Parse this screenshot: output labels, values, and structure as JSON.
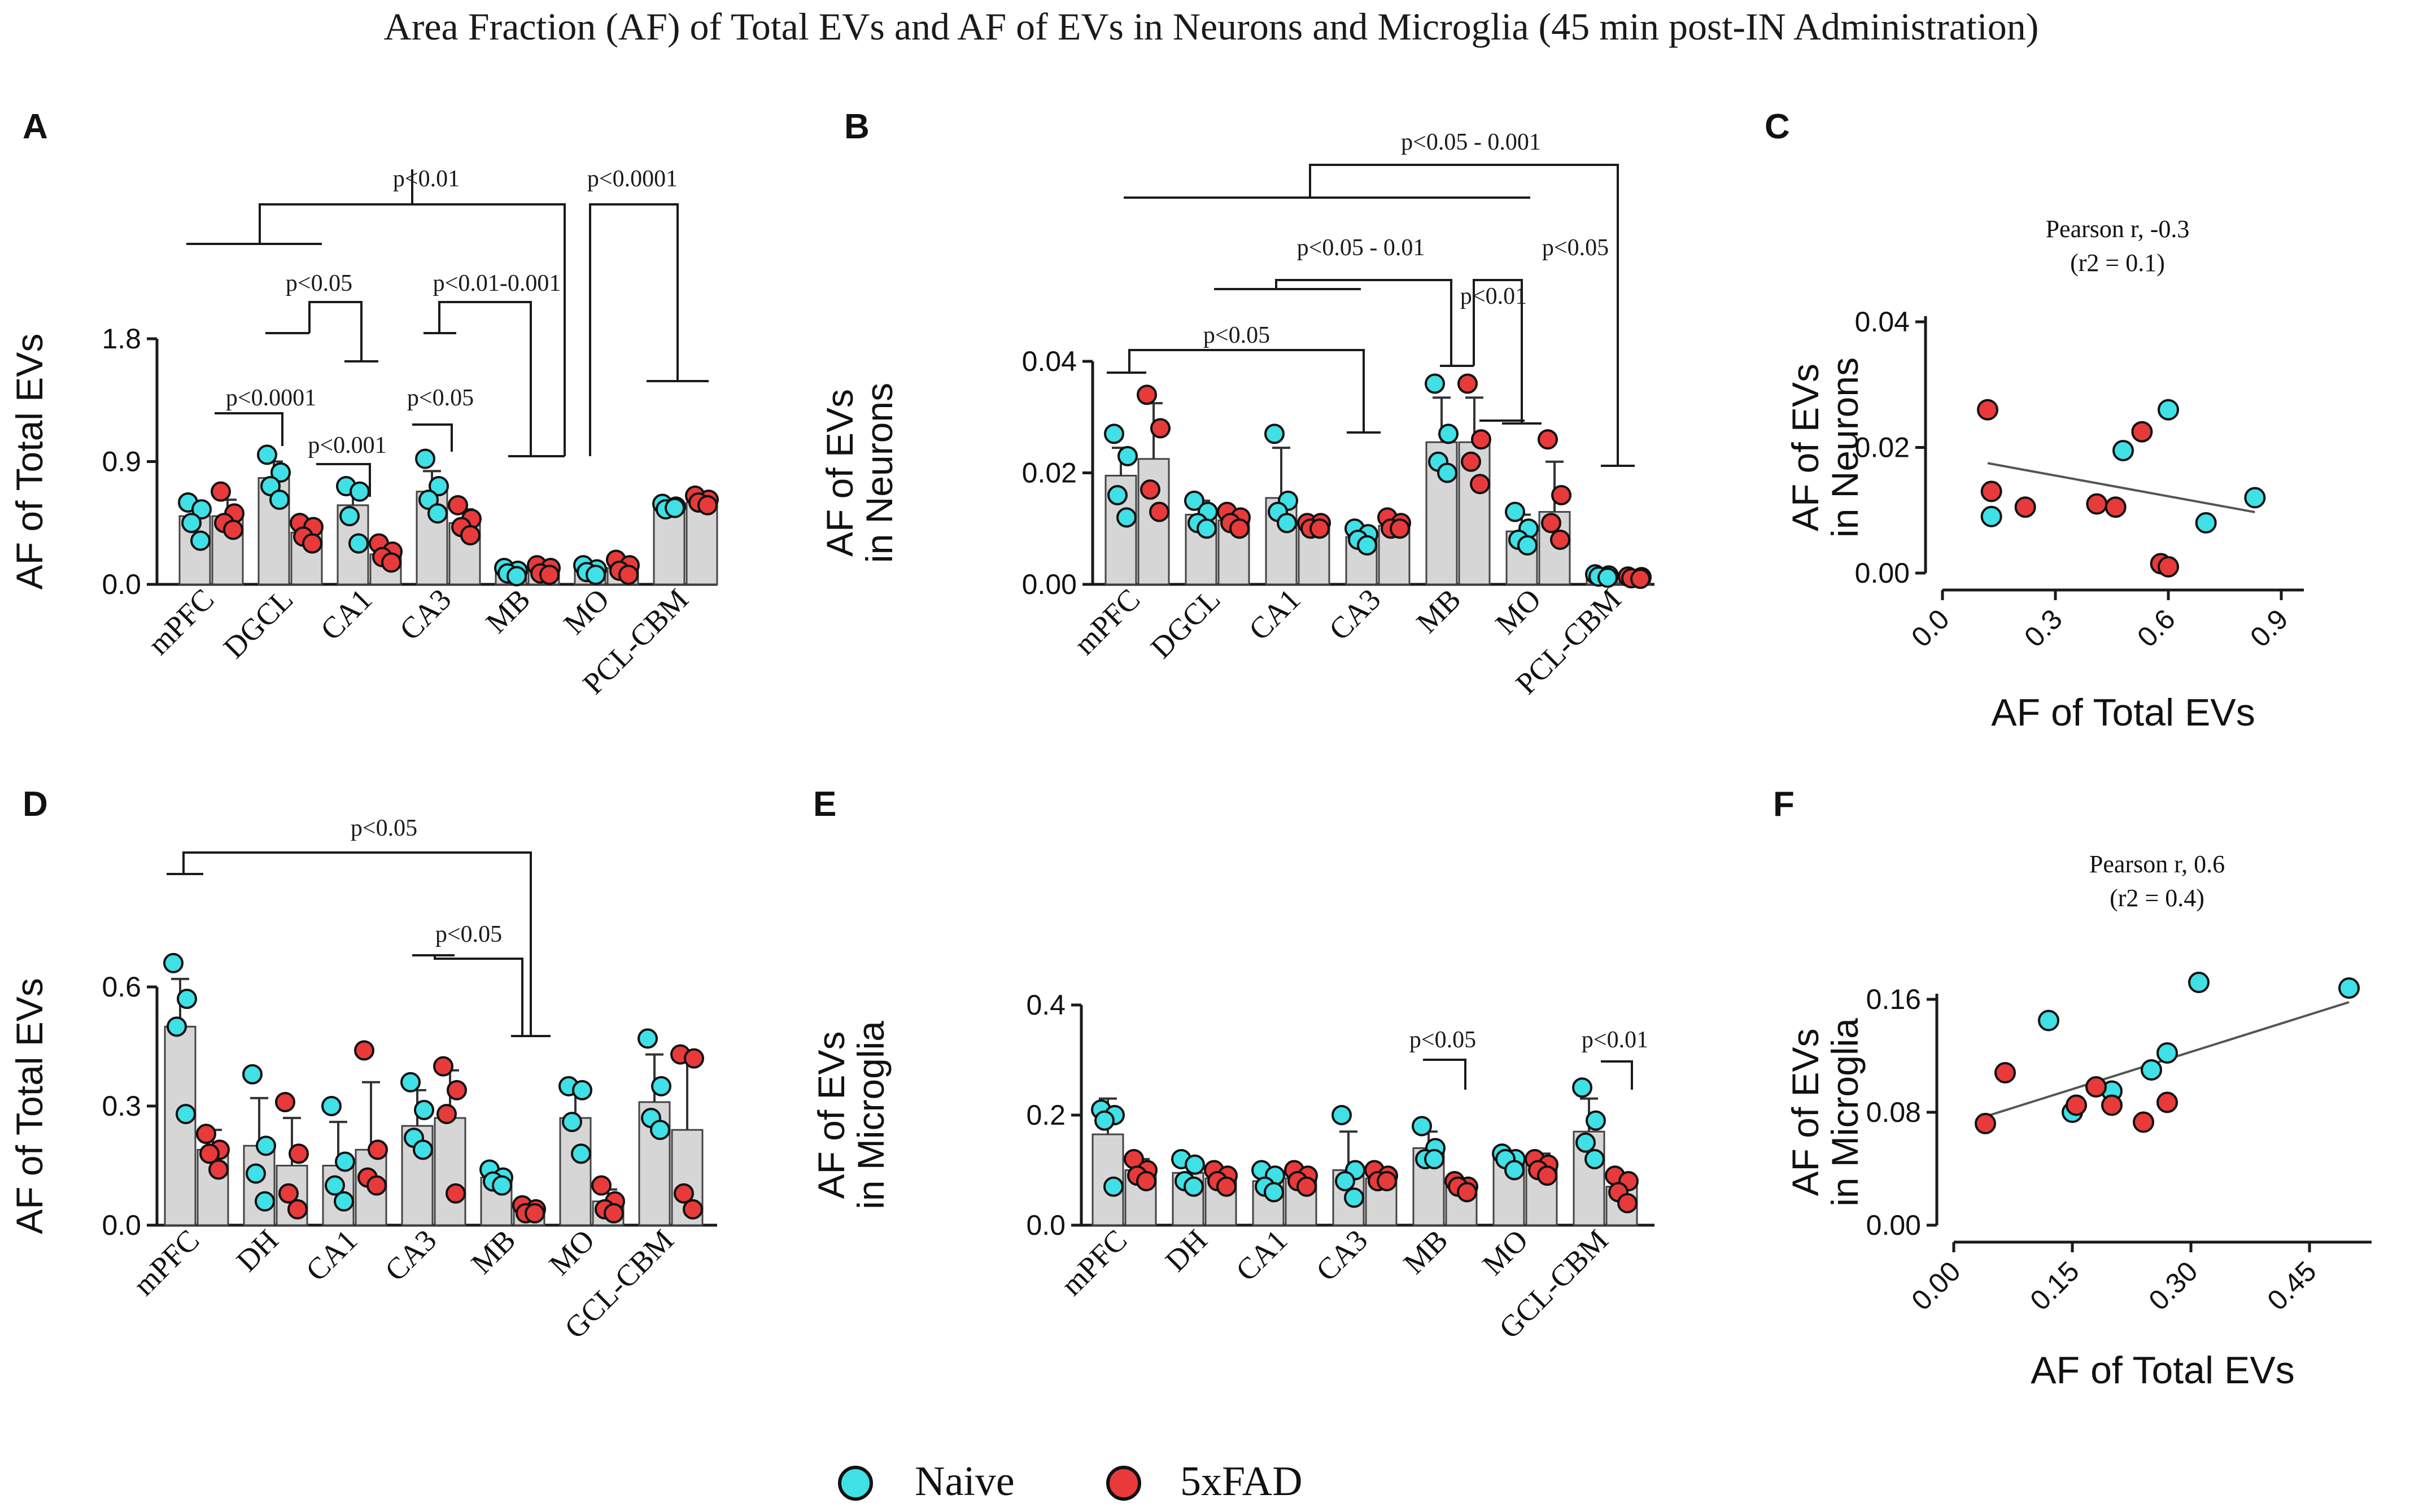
{
  "title": "Area Fraction (AF) of Total EVs and AF of EVs in Neurons and Microglia (45 min post-IN Administration)",
  "legend": {
    "naive": "Naive",
    "fad": "5xFAD"
  },
  "colors": {
    "naive": "#3fe0e6",
    "fad": "#e83a3a",
    "bar": "#d6d6d6",
    "stroke": "#1a1a1a"
  },
  "chart_data": [
    {
      "id": "A",
      "type": "bar",
      "panel": "A",
      "ylabel": "AF of Total EVs",
      "ylim": [
        0,
        1.8
      ],
      "yticks": [
        0.0,
        0.9,
        1.8
      ],
      "ytick_labels": [
        "0.0",
        "0.9",
        "1.8"
      ],
      "categories": [
        "mPFC",
        "DGCL",
        "CA1",
        "CA3",
        "MB",
        "MO",
        "PCL-CBM"
      ],
      "series": [
        {
          "name": "Naive",
          "means": [
            0.5,
            0.78,
            0.58,
            0.68,
            0.09,
            0.1,
            0.57
          ],
          "sd": [
            0.11,
            0.12,
            0.15,
            0.15,
            0.05,
            0.04,
            0.03
          ],
          "points": [
            [
              0.6,
              0.55,
              0.45,
              0.32
            ],
            [
              0.95,
              0.82,
              0.72,
              0.62
            ],
            [
              0.72,
              0.68,
              0.5,
              0.3
            ],
            [
              0.92,
              0.72,
              0.62,
              0.52
            ],
            [
              0.12,
              0.1,
              0.08,
              0.06
            ],
            [
              0.14,
              0.11,
              0.09,
              0.07
            ],
            [
              0.59,
              0.57,
              0.55,
              0.56
            ]
          ]
        },
        {
          "name": "5xFAD",
          "means": [
            0.5,
            0.38,
            0.22,
            0.45,
            0.1,
            0.12,
            0.6
          ],
          "sd": [
            0.12,
            0.1,
            0.06,
            0.1,
            0.04,
            0.05,
            0.05
          ],
          "points": [
            [
              0.68,
              0.52,
              0.45,
              0.4
            ],
            [
              0.45,
              0.42,
              0.35,
              0.3
            ],
            [
              0.3,
              0.24,
              0.2,
              0.16
            ],
            [
              0.58,
              0.48,
              0.42,
              0.36
            ],
            [
              0.14,
              0.12,
              0.08,
              0.07
            ],
            [
              0.18,
              0.14,
              0.1,
              0.07
            ],
            [
              0.65,
              0.62,
              0.6,
              0.58
            ]
          ]
        }
      ],
      "annotations": [
        "p<0.01",
        "p<0.0001",
        "p<0.05",
        "p<0.01-0.001",
        "p<0.0001",
        "p<0.001",
        "p<0.05"
      ]
    },
    {
      "id": "B",
      "type": "bar",
      "panel": "B",
      "ylabel": "AF of EVs in Neurons",
      "ylim": [
        0,
        0.04
      ],
      "yticks": [
        0.0,
        0.02,
        0.04
      ],
      "ytick_labels": [
        "0.00",
        "0.02",
        "0.04"
      ],
      "categories": [
        "mPFC",
        "DGCL",
        "CA1",
        "CA3",
        "MB",
        "MO",
        "PCL-CBM"
      ],
      "series": [
        {
          "name": "Naive",
          "means": [
            0.0195,
            0.0125,
            0.0155,
            0.0085,
            0.0255,
            0.0095,
            0.0015
          ],
          "sd": [
            0.005,
            0.0025,
            0.009,
            0.002,
            0.008,
            0.003,
            0.0005
          ],
          "points": [
            [
              0.027,
              0.023,
              0.016,
              0.012
            ],
            [
              0.015,
              0.013,
              0.011,
              0.01
            ],
            [
              0.027,
              0.015,
              0.013,
              0.011
            ],
            [
              0.01,
              0.009,
              0.008,
              0.007
            ],
            [
              0.036,
              0.027,
              0.022,
              0.02
            ],
            [
              0.013,
              0.01,
              0.008,
              0.007
            ],
            [
              0.0018,
              0.0016,
              0.0014,
              0.0012
            ]
          ]
        },
        {
          "name": "5xFAD",
          "means": [
            0.0225,
            0.0115,
            0.0105,
            0.0105,
            0.0255,
            0.013,
            0.0012
          ],
          "sd": [
            0.01,
            0.0015,
            0.001,
            0.0015,
            0.008,
            0.009,
            0.0003
          ],
          "points": [
            [
              0.034,
              0.028,
              0.017,
              0.013
            ],
            [
              0.013,
              0.012,
              0.011,
              0.01
            ],
            [
              0.011,
              0.011,
              0.01,
              0.01
            ],
            [
              0.012,
              0.011,
              0.01,
              0.01
            ],
            [
              0.036,
              0.026,
              0.022,
              0.018
            ],
            [
              0.026,
              0.016,
              0.011,
              0.008
            ],
            [
              0.0014,
              0.0013,
              0.0011,
              0.001
            ]
          ]
        }
      ],
      "annotations": [
        "p<0.05 - 0.001",
        "p<0.05 - 0.01",
        "p<0.05",
        "p<0.01",
        "p<0.05"
      ]
    },
    {
      "id": "C",
      "type": "scatter",
      "panel": "C",
      "xlabel": "AF of Total EVs",
      "ylabel": "AF of EVs in Neurons",
      "xlim": [
        0,
        0.9
      ],
      "ylim": [
        0,
        0.04
      ],
      "xtick_labels": [
        "0.0",
        "0.3",
        "0.6",
        "0.9"
      ],
      "ytick_labels": [
        "0.00",
        "0.02",
        "0.04"
      ],
      "annotation": "Pearson r, -0.3",
      "annotation2": "(r2 = 0.1)",
      "naive_points": [
        [
          0.13,
          0.009
        ],
        [
          0.48,
          0.0195
        ],
        [
          0.6,
          0.026
        ],
        [
          0.7,
          0.008
        ],
        [
          0.83,
          0.012
        ]
      ],
      "fad_points": [
        [
          0.12,
          0.026
        ],
        [
          0.13,
          0.013
        ],
        [
          0.22,
          0.0105
        ],
        [
          0.41,
          0.011
        ],
        [
          0.46,
          0.0105
        ],
        [
          0.53,
          0.0225
        ],
        [
          0.58,
          0.0015
        ],
        [
          0.6,
          0.001
        ]
      ],
      "fit": [
        [
          0.12,
          0.0175
        ],
        [
          0.83,
          0.0097
        ]
      ]
    },
    {
      "id": "D",
      "type": "bar",
      "panel": "D",
      "ylabel": "AF of Total EVs",
      "ylim": [
        0,
        0.6
      ],
      "yticks": [
        0.0,
        0.3,
        0.6
      ],
      "ytick_labels": [
        "0.0",
        "0.3",
        "0.6"
      ],
      "categories": [
        "mPFC",
        "DH",
        "CA1",
        "CA3",
        "MB",
        "MO",
        "GCL-CBM"
      ],
      "series": [
        {
          "name": "Naive",
          "means": [
            0.5,
            0.2,
            0.15,
            0.25,
            0.12,
            0.27,
            0.31
          ],
          "sd": [
            0.12,
            0.12,
            0.11,
            0.09,
            0.02,
            0.08,
            0.12
          ],
          "points": [
            [
              0.66,
              0.57,
              0.5,
              0.28
            ],
            [
              0.38,
              0.2,
              0.13,
              0.06
            ],
            [
              0.3,
              0.16,
              0.1,
              0.06
            ],
            [
              0.36,
              0.29,
              0.22,
              0.19
            ],
            [
              0.14,
              0.12,
              0.11,
              0.1
            ],
            [
              0.35,
              0.34,
              0.26,
              0.18
            ],
            [
              0.47,
              0.35,
              0.27,
              0.24
            ]
          ]
        },
        {
          "name": "5xFAD",
          "means": [
            0.19,
            0.15,
            0.19,
            0.27,
            0.04,
            0.06,
            0.24
          ],
          "sd": [
            0.05,
            0.12,
            0.17,
            0.12,
            0.01,
            0.03,
            0.2
          ],
          "points": [
            [
              0.23,
              0.19,
              0.18,
              0.14
            ],
            [
              0.31,
              0.18,
              0.08,
              0.04
            ],
            [
              0.44,
              0.19,
              0.12,
              0.1
            ],
            [
              0.4,
              0.34,
              0.28,
              0.08
            ],
            [
              0.05,
              0.04,
              0.03,
              0.03
            ],
            [
              0.1,
              0.06,
              0.04,
              0.03
            ],
            [
              0.43,
              0.42,
              0.08,
              0.04
            ]
          ]
        }
      ],
      "annotations": [
        "p<0.05",
        "p<0.05"
      ]
    },
    {
      "id": "E",
      "type": "bar",
      "panel": "E",
      "ylabel": "AF of EVs in Microglia",
      "ylim": [
        0,
        0.4
      ],
      "yticks": [
        0.0,
        0.2,
        0.4
      ],
      "ytick_labels": [
        "0.0",
        "0.2",
        "0.4"
      ],
      "categories": [
        "mPFC",
        "DH",
        "CA1",
        "CA3",
        "MB",
        "MO",
        "GCL-CBM"
      ],
      "series": [
        {
          "name": "Naive",
          "means": [
            0.165,
            0.095,
            0.08,
            0.1,
            0.14,
            0.12,
            0.17
          ],
          "sd": [
            0.065,
            0.025,
            0.02,
            0.07,
            0.03,
            0.015,
            0.06
          ],
          "points": [
            [
              0.21,
              0.2,
              0.19,
              0.07
            ],
            [
              0.12,
              0.11,
              0.08,
              0.07
            ],
            [
              0.1,
              0.09,
              0.07,
              0.06
            ],
            [
              0.2,
              0.1,
              0.08,
              0.05
            ],
            [
              0.18,
              0.14,
              0.12,
              0.12
            ],
            [
              0.13,
              0.12,
              0.12,
              0.1
            ],
            [
              0.25,
              0.19,
              0.15,
              0.12
            ]
          ]
        },
        {
          "name": "5xFAD",
          "means": [
            0.1,
            0.085,
            0.085,
            0.085,
            0.07,
            0.11,
            0.07
          ],
          "sd": [
            0.02,
            0.02,
            0.015,
            0.015,
            0.015,
            0.02,
            0.02
          ],
          "points": [
            [
              0.12,
              0.1,
              0.09,
              0.08
            ],
            [
              0.1,
              0.09,
              0.08,
              0.07
            ],
            [
              0.1,
              0.09,
              0.08,
              0.07
            ],
            [
              0.1,
              0.09,
              0.08,
              0.08
            ],
            [
              0.08,
              0.07,
              0.07,
              0.06
            ],
            [
              0.12,
              0.11,
              0.1,
              0.09
            ],
            [
              0.09,
              0.08,
              0.06,
              0.04
            ]
          ]
        }
      ],
      "annotations": [
        "p<0.05",
        "p<0.01"
      ]
    },
    {
      "id": "F",
      "type": "scatter",
      "panel": "F",
      "xlabel": "AF of Total EVs",
      "ylabel": "AF of EVs in Microglia",
      "xlim": [
        0,
        0.5
      ],
      "ylim": [
        0,
        0.16
      ],
      "xtick_labels": [
        "0.00",
        "0.15",
        "0.30",
        "0.45"
      ],
      "ytick_labels": [
        "0.00",
        "0.08",
        "0.16"
      ],
      "annotation": "Pearson r, 0.6",
      "annotation2": "(r2 = 0.4)",
      "naive_points": [
        [
          0.12,
          0.145
        ],
        [
          0.15,
          0.08
        ],
        [
          0.2,
          0.095
        ],
        [
          0.25,
          0.11
        ],
        [
          0.27,
          0.122
        ],
        [
          0.31,
          0.172
        ],
        [
          0.5,
          0.168
        ]
      ],
      "fad_points": [
        [
          0.04,
          0.072
        ],
        [
          0.065,
          0.108
        ],
        [
          0.155,
          0.085
        ],
        [
          0.18,
          0.098
        ],
        [
          0.2,
          0.085
        ],
        [
          0.24,
          0.073
        ],
        [
          0.27,
          0.087
        ]
      ],
      "fit": [
        [
          0.04,
          0.077
        ],
        [
          0.5,
          0.158
        ]
      ]
    }
  ]
}
